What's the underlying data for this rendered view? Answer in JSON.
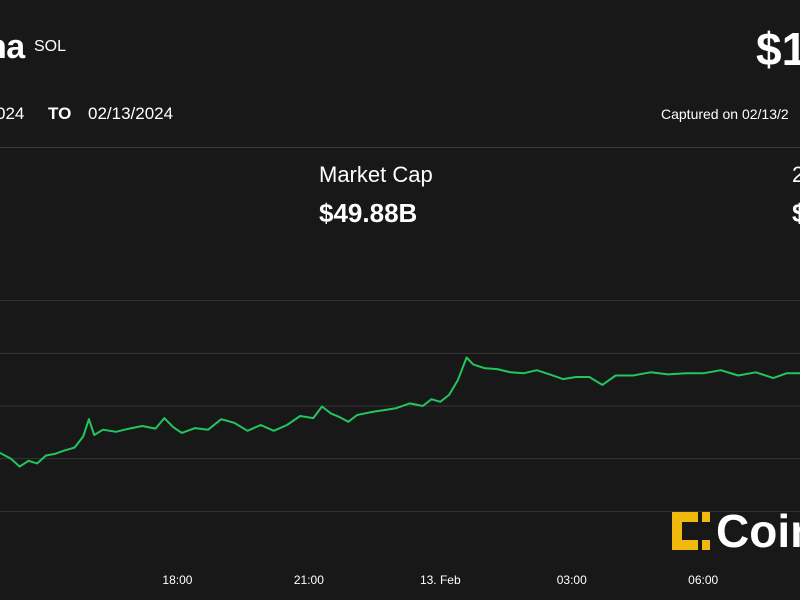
{
  "header": {
    "asset_name": "na",
    "ticker": "SOL",
    "price": "$1",
    "from_date": "024",
    "to_label": "TO",
    "to_date": "02/13/2024",
    "captured": "Captured on 02/13/2"
  },
  "stats": {
    "market_cap_label": "Market Cap",
    "market_cap_value": "$49.88B",
    "stat2_label": "2",
    "stat2_value": "$"
  },
  "logo": {
    "text": "Coin",
    "mark_color": "#f0b90b"
  },
  "colors": {
    "background": "#181818",
    "line": "#22c55e",
    "grid": "#333333"
  },
  "chart_data": {
    "type": "line",
    "title": "",
    "xlabel": "",
    "ylabel": "",
    "x_ticks": [
      {
        "label": "18:00",
        "x": 3.0
      },
      {
        "label": "21:00",
        "x": 6.0
      },
      {
        "label": "13. Feb",
        "x": 9.0
      },
      {
        "label": "03:00",
        "x": 12.0
      },
      {
        "label": "06:00",
        "x": 15.0
      }
    ],
    "xlim": [
      -1.05,
      17.21
    ],
    "ylim": [
      0,
      6
    ],
    "gridlines_y": [
      1,
      2,
      3,
      4,
      5
    ],
    "grid": true,
    "y_tick_labels_visible": false,
    "series": [
      {
        "points": [
          [
            -1.05,
            2.11
          ],
          [
            -0.8,
            2.0
          ],
          [
            -0.6,
            1.85
          ],
          [
            -0.4,
            1.96
          ],
          [
            -0.2,
            1.91
          ],
          [
            0.0,
            2.06
          ],
          [
            0.2,
            2.09
          ],
          [
            0.4,
            2.15
          ],
          [
            0.65,
            2.21
          ],
          [
            0.85,
            2.42
          ],
          [
            0.98,
            2.75
          ],
          [
            1.1,
            2.45
          ],
          [
            1.3,
            2.55
          ],
          [
            1.6,
            2.51
          ],
          [
            1.9,
            2.57
          ],
          [
            2.2,
            2.62
          ],
          [
            2.5,
            2.57
          ],
          [
            2.7,
            2.77
          ],
          [
            2.9,
            2.6
          ],
          [
            3.1,
            2.49
          ],
          [
            3.4,
            2.58
          ],
          [
            3.7,
            2.55
          ],
          [
            4.0,
            2.75
          ],
          [
            4.3,
            2.68
          ],
          [
            4.6,
            2.53
          ],
          [
            4.9,
            2.64
          ],
          [
            5.2,
            2.53
          ],
          [
            5.5,
            2.64
          ],
          [
            5.8,
            2.81
          ],
          [
            6.1,
            2.77
          ],
          [
            6.3,
            2.99
          ],
          [
            6.5,
            2.86
          ],
          [
            6.7,
            2.79
          ],
          [
            6.9,
            2.7
          ],
          [
            7.1,
            2.83
          ],
          [
            7.4,
            2.88
          ],
          [
            7.7,
            2.92
          ],
          [
            8.0,
            2.96
          ],
          [
            8.3,
            3.05
          ],
          [
            8.6,
            3.0
          ],
          [
            8.8,
            3.13
          ],
          [
            9.0,
            3.08
          ],
          [
            9.2,
            3.21
          ],
          [
            9.4,
            3.49
          ],
          [
            9.6,
            3.92
          ],
          [
            9.75,
            3.79
          ],
          [
            10.0,
            3.72
          ],
          [
            10.3,
            3.7
          ],
          [
            10.6,
            3.64
          ],
          [
            10.9,
            3.62
          ],
          [
            11.2,
            3.68
          ],
          [
            11.5,
            3.6
          ],
          [
            11.8,
            3.51
          ],
          [
            12.1,
            3.55
          ],
          [
            12.4,
            3.55
          ],
          [
            12.7,
            3.4
          ],
          [
            13.0,
            3.58
          ],
          [
            13.4,
            3.58
          ],
          [
            13.8,
            3.64
          ],
          [
            14.2,
            3.6
          ],
          [
            14.6,
            3.62
          ],
          [
            15.0,
            3.62
          ],
          [
            15.4,
            3.68
          ],
          [
            15.8,
            3.58
          ],
          [
            16.2,
            3.64
          ],
          [
            16.6,
            3.53
          ],
          [
            16.9,
            3.62
          ],
          [
            17.21,
            3.62
          ]
        ]
      }
    ]
  }
}
